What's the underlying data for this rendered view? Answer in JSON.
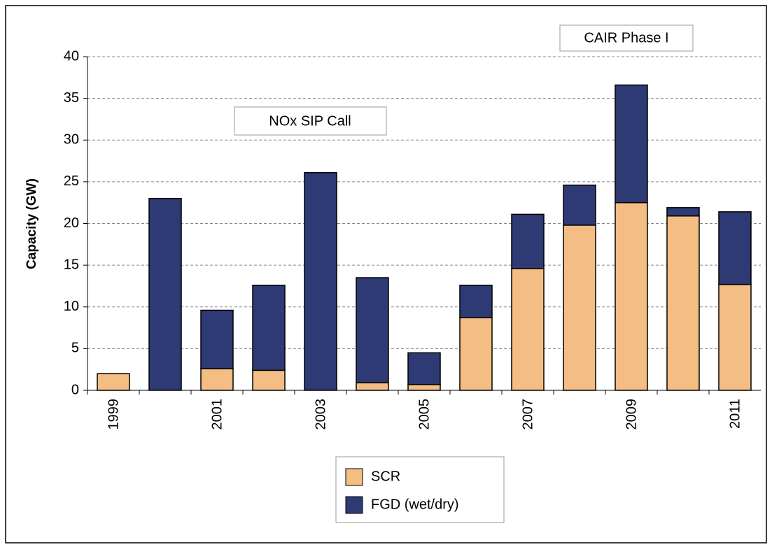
{
  "chart_data": {
    "type": "stacked_bar",
    "ylabel": "Capacity (GW)",
    "categories": [
      "1999",
      null,
      "2001",
      null,
      "2003",
      null,
      "2005",
      null,
      "2007",
      null,
      "2009",
      null,
      "2011"
    ],
    "series": [
      {
        "name": "SCR",
        "color": "#f3bd83",
        "values": [
          2.0,
          0,
          2.6,
          2.4,
          0,
          0.9,
          0.7,
          8.7,
          14.6,
          19.8,
          22.5,
          20.9,
          12.7
        ]
      },
      {
        "name": "FGD (wet/dry)",
        "color": "#2e3a73",
        "values": [
          0,
          23.0,
          7.0,
          10.2,
          26.1,
          12.6,
          3.8,
          3.9,
          6.5,
          4.8,
          14.1,
          1.0,
          8.7
        ]
      }
    ],
    "ylim": [
      0,
      40
    ],
    "yticks": [
      0,
      5,
      10,
      15,
      20,
      25,
      30,
      35,
      40
    ],
    "grid": true,
    "annotations": [
      "NOx SIP Call",
      "CAIR Phase I"
    ]
  }
}
